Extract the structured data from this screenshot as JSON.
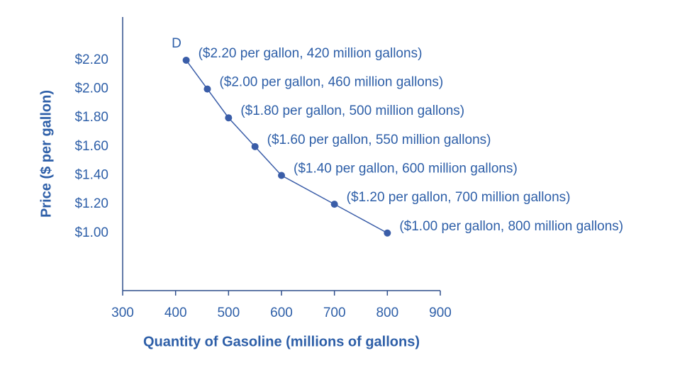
{
  "chart_data": {
    "type": "line",
    "x_label": "Quantity of Gasoline (millions of gallons)",
    "y_label": "Price ($ per gallon)",
    "annotation": "D",
    "xlim": [
      300,
      900
    ],
    "xticks": [
      300,
      400,
      500,
      600,
      700,
      800,
      900
    ],
    "ylim": [
      0.6,
      2.5
    ],
    "yticks": [
      {
        "value": 1.0,
        "label": "$1.00"
      },
      {
        "value": 1.2,
        "label": "$1.20"
      },
      {
        "value": 1.4,
        "label": "$1.40"
      },
      {
        "value": 1.6,
        "label": "$1.60"
      },
      {
        "value": 1.8,
        "label": "$1.80"
      },
      {
        "value": 2.0,
        "label": "$2.00"
      },
      {
        "value": 2.2,
        "label": "$2.20"
      }
    ],
    "grid": false,
    "series": [
      {
        "color": "#3a5da8",
        "x": [
          420,
          460,
          500,
          550,
          600,
          700,
          800
        ],
        "values": [
          2.2,
          2.0,
          1.8,
          1.6,
          1.4,
          1.2,
          1.0
        ],
        "value_labels": [
          "($2.20 per gallon, 420 million gallons)",
          "($2.00 per gallon, 460 million gallons)",
          "($1.80 per gallon, 500 million gallons)",
          "($1.60 per gallon, 550 million gallons)",
          "($1.40 per gallon, 600 million gallons)",
          "($1.20 per gallon, 700 million gallons)",
          "($1.00 per gallon, 800 million gallons)"
        ]
      }
    ]
  }
}
